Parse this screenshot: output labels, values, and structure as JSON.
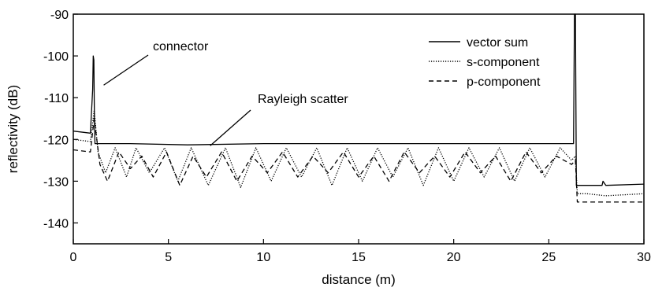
{
  "chart_data": {
    "type": "line",
    "title": "",
    "xlabel": "distance (m)",
    "ylabel": "reflectivity (dB)",
    "xlim": [
      0,
      30
    ],
    "ylim": [
      -145,
      -90
    ],
    "x_ticks": [
      0,
      5,
      10,
      15,
      20,
      25,
      30
    ],
    "y_ticks": [
      -90,
      -100,
      -110,
      -120,
      -130,
      -140
    ],
    "x_tick_labels": [
      "0",
      "5",
      "10",
      "15",
      "20",
      "25",
      "30"
    ],
    "y_tick_labels": [
      "-90",
      "-100",
      "-110",
      "-120",
      "-130",
      "-140"
    ],
    "grid": false,
    "legend_position": "top-right",
    "series": [
      {
        "name": "vector sum",
        "line_style": "solid",
        "x": [
          0,
          0.9,
          1.02,
          1.05,
          1.08,
          1.11,
          1.14,
          1.2,
          1.5,
          3,
          6,
          10,
          15,
          20,
          25,
          26.3,
          26.35,
          26.4,
          26.45,
          26.5,
          27,
          27.8,
          27.85,
          28,
          30
        ],
        "y": [
          -118,
          -118.5,
          -108,
          -100,
          -101,
          -115,
          -121,
          -121,
          -121,
          -121,
          -121.3,
          -121,
          -121,
          -121,
          -121,
          -121,
          -90,
          -90,
          -131,
          -131,
          -131,
          -131,
          -130,
          -131,
          -130.7
        ]
      },
      {
        "name": "s-component",
        "line_style": "dotted",
        "x": [
          0,
          0.9,
          1.1,
          1.3,
          1.7,
          2.2,
          2.8,
          3.3,
          4,
          4.8,
          5.5,
          6.2,
          7.1,
          8,
          8.8,
          9.6,
          10.4,
          11.2,
          12,
          12.8,
          13.6,
          14.4,
          15.2,
          16,
          16.8,
          17.6,
          18.4,
          19.2,
          20,
          20.8,
          21.6,
          22.4,
          23.2,
          24,
          24.8,
          25.6,
          26.2,
          26.4,
          26.5,
          27,
          28,
          30
        ],
        "y": [
          -120,
          -120.5,
          -113,
          -123,
          -128,
          -122,
          -129,
          -122,
          -128,
          -122,
          -130,
          -122,
          -131,
          -122,
          -131.5,
          -122,
          -130,
          -122,
          -129,
          -122,
          -131,
          -122,
          -130,
          -122,
          -129,
          -122,
          -131,
          -122,
          -130,
          -122,
          -129,
          -122,
          -130,
          -122,
          -129,
          -122,
          -125,
          -124,
          -133,
          -133,
          -133.5,
          -133
        ]
      },
      {
        "name": "p-component",
        "line_style": "dashed",
        "x": [
          0,
          0.9,
          1.1,
          1.4,
          1.8,
          2.4,
          3,
          3.6,
          4.2,
          4.9,
          5.6,
          6.3,
          7,
          7.8,
          8.6,
          9.4,
          10.2,
          11,
          11.8,
          12.6,
          13.4,
          14.2,
          15,
          15.8,
          16.6,
          17.4,
          18.2,
          19,
          19.8,
          20.6,
          21.4,
          22.2,
          23,
          23.8,
          24.6,
          25.4,
          26.2,
          26.4,
          26.5,
          27,
          28,
          30
        ],
        "y": [
          -122.5,
          -123,
          -115,
          -126,
          -130,
          -123,
          -127,
          -124,
          -129,
          -123,
          -131,
          -124,
          -129,
          -123,
          -130,
          -124,
          -128,
          -123,
          -129,
          -124,
          -128,
          -123,
          -129,
          -124,
          -130,
          -123,
          -128,
          -124,
          -129,
          -123,
          -128,
          -124,
          -130,
          -123,
          -128,
          -124,
          -126,
          -125,
          -135,
          -135,
          -135,
          -135
        ]
      }
    ],
    "annotations": [
      {
        "text": "connector",
        "x": 1.1,
        "y": -107
      },
      {
        "text": "Rayleigh scatter",
        "x": 7.2,
        "y": -121.5
      }
    ]
  }
}
